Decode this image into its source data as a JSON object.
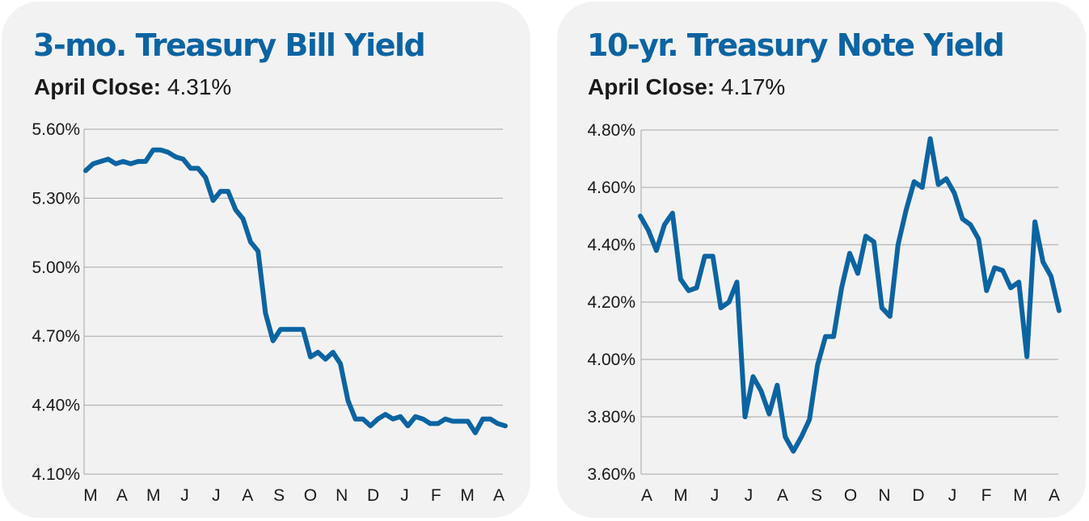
{
  "chart_data": [
    {
      "type": "line",
      "title": "3-mo. Treasury Bill Yield",
      "subtitle_label": "April Close:",
      "subtitle_value": "4.31%",
      "color": "#0b64a2",
      "ylim": [
        4.1,
        5.6
      ],
      "yticks": [
        "5.60%",
        "5.30%",
        "5.00%",
        "4.70%",
        "4.40%",
        "4.10%"
      ],
      "ytick_values": [
        5.6,
        5.3,
        5.0,
        4.7,
        4.4,
        4.1
      ],
      "xticks": [
        "M",
        "A",
        "M",
        "J",
        "J",
        "A",
        "S",
        "O",
        "N",
        "D",
        "J",
        "F",
        "M",
        "A"
      ],
      "grid": true,
      "series": [
        {
          "values": [
            5.42,
            5.45,
            5.46,
            5.47,
            5.45,
            5.46,
            5.45,
            5.46,
            5.46,
            5.51,
            5.51,
            5.5,
            5.48,
            5.47,
            5.43,
            5.43,
            5.39,
            5.29,
            5.33,
            5.33,
            5.25,
            5.21,
            5.11,
            5.07,
            4.8,
            4.68,
            4.73,
            4.73,
            4.73,
            4.73,
            4.61,
            4.63,
            4.6,
            4.63,
            4.58,
            4.42,
            4.34,
            4.34,
            4.31,
            4.34,
            4.36,
            4.34,
            4.35,
            4.31,
            4.35,
            4.34,
            4.32,
            4.32,
            4.34,
            4.33,
            4.33,
            4.33,
            4.28,
            4.34,
            4.34,
            4.32,
            4.31
          ]
        }
      ]
    },
    {
      "type": "line",
      "title": "10-yr. Treasury Note Yield",
      "subtitle_label": "April Close:",
      "subtitle_value": "4.17%",
      "color": "#0b64a2",
      "ylim": [
        3.6,
        4.8
      ],
      "yticks": [
        "4.80%",
        "4.60%",
        "4.40%",
        "4.20%",
        "4.00%",
        "3.80%",
        "3.60%"
      ],
      "ytick_values": [
        4.8,
        4.6,
        4.4,
        4.2,
        4.0,
        3.8,
        3.6
      ],
      "xticks": [
        "A",
        "M",
        "J",
        "J",
        "A",
        "S",
        "O",
        "N",
        "D",
        "J",
        "F",
        "M",
        "A"
      ],
      "grid": true,
      "series": [
        {
          "values": [
            4.5,
            4.45,
            4.38,
            4.47,
            4.51,
            4.28,
            4.24,
            4.25,
            4.36,
            4.36,
            4.18,
            4.2,
            4.27,
            3.8,
            3.94,
            3.89,
            3.81,
            3.91,
            3.73,
            3.68,
            3.73,
            3.79,
            3.98,
            4.08,
            4.08,
            4.25,
            4.37,
            4.3,
            4.43,
            4.41,
            4.18,
            4.15,
            4.4,
            4.52,
            4.62,
            4.6,
            4.77,
            4.61,
            4.63,
            4.58,
            4.49,
            4.47,
            4.42,
            4.24,
            4.32,
            4.31,
            4.25,
            4.27,
            4.01,
            4.48,
            4.34,
            4.29,
            4.17
          ]
        }
      ]
    }
  ]
}
